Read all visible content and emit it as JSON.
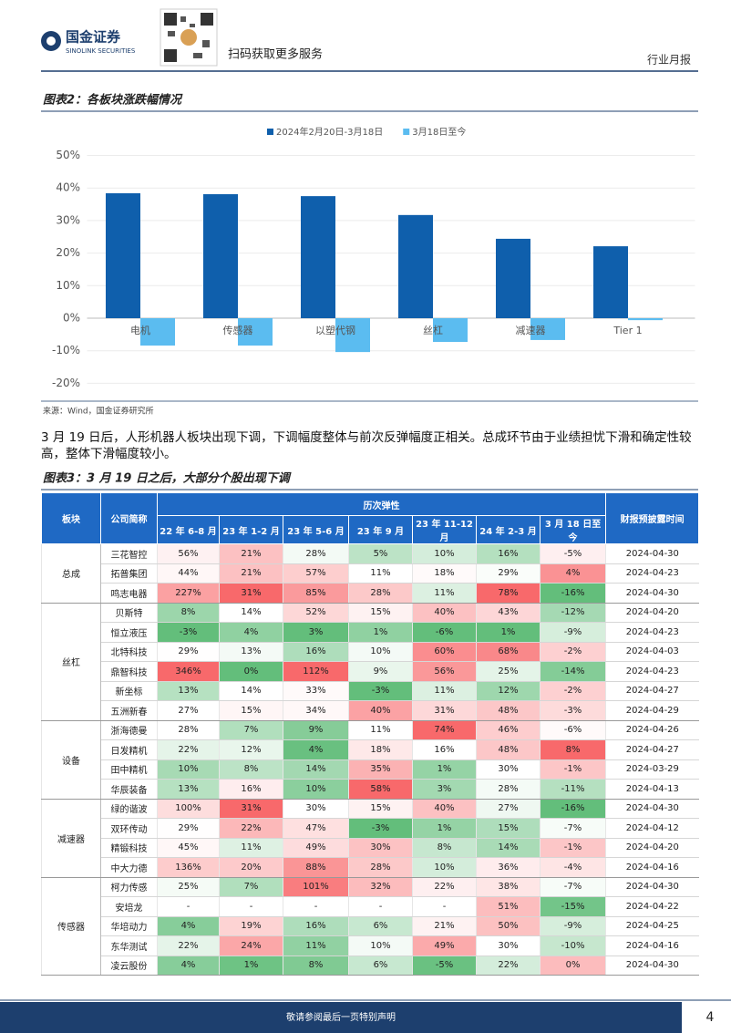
{
  "header": {
    "logo_cn": "国金证券",
    "logo_en": "SINOLINK SECURITIES",
    "qr_caption": "扫码获取更多服务",
    "report_type": "行业月报"
  },
  "figure2": {
    "title": "图表2：各板块涨跌幅情况",
    "source": "来源：Wind，国金证券研究所"
  },
  "chart_data": {
    "type": "bar",
    "categories": [
      "电机",
      "传感器",
      "以塑代钢",
      "丝杠",
      "减速器",
      "Tier 1"
    ],
    "series": [
      {
        "name": "2024年2月20日-3月18日",
        "color": "#0f5fac",
        "values": [
          38.4,
          38.1,
          37.5,
          31.7,
          24.4,
          22.1
        ]
      },
      {
        "name": "3月18日至今",
        "color": "#5bbcf0",
        "values": [
          -8.4,
          -8.4,
          -10.4,
          -7.3,
          -6.7,
          -0.6
        ]
      }
    ],
    "ylim": [
      -20,
      50
    ],
    "yticks": [
      {
        "value": -20,
        "label": "-20%"
      },
      {
        "value": -10,
        "label": "-10%"
      },
      {
        "value": 0,
        "label": "0%"
      },
      {
        "value": 10,
        "label": "10%"
      },
      {
        "value": 20,
        "label": "20%"
      },
      {
        "value": 30,
        "label": "30%"
      },
      {
        "value": 40,
        "label": "40%"
      },
      {
        "value": 50,
        "label": "50%"
      }
    ],
    "grid": true,
    "legend": "top"
  },
  "paragraph": "3 月 19 日后，人形机器人板块出现下调，下调幅度整体与前次反弹幅度正相关。总成环节由于业绩担忧下滑和确定性较高，整体下滑幅度较小。",
  "figure3": {
    "title": "图表3：3 月 19 日之后，大部分个股出现下调"
  },
  "table": {
    "columns": [
      "板块",
      "公司简称",
      "历次弹性",
      "财报预披露时间"
    ],
    "sub_columns": [
      "22 年 6-8 月",
      "23 年 1-2 月",
      "23 年 5-6 月",
      "23 年 9 月",
      "23 年 11-12 月",
      "24 年 2-3 月",
      "3 月 18 日至今"
    ],
    "heat_colors": {
      "min": "#63be7b",
      "mid": "#ffffff",
      "max": "#f8696b"
    },
    "groups": [
      {
        "name": "总成",
        "rows": [
          [
            "三花智控",
            "56%",
            "21%",
            "28%",
            "5%",
            "10%",
            "16%",
            "-5%",
            "2024-04-30"
          ],
          [
            "拓普集团",
            "44%",
            "21%",
            "57%",
            "11%",
            "18%",
            "29%",
            "4%",
            "2024-04-23"
          ],
          [
            "鸣志电器",
            "227%",
            "31%",
            "85%",
            "28%",
            "11%",
            "78%",
            "-16%",
            "2024-04-30"
          ]
        ]
      },
      {
        "name": "丝杠",
        "rows": [
          [
            "贝斯特",
            "8%",
            "14%",
            "52%",
            "15%",
            "40%",
            "43%",
            "-12%",
            "2024-04-20"
          ],
          [
            "恒立液压",
            "-3%",
            "4%",
            "3%",
            "1%",
            "-6%",
            "1%",
            "-9%",
            "2024-04-23"
          ],
          [
            "北特科技",
            "29%",
            "13%",
            "16%",
            "10%",
            "60%",
            "68%",
            "-2%",
            "2024-04-03"
          ],
          [
            "鼎智科技",
            "346%",
            "0%",
            "112%",
            "9%",
            "56%",
            "25%",
            "-14%",
            "2024-04-23"
          ],
          [
            "新坐标",
            "13%",
            "14%",
            "33%",
            "-3%",
            "11%",
            "12%",
            "-2%",
            "2024-04-27"
          ],
          [
            "五洲新春",
            "27%",
            "15%",
            "34%",
            "40%",
            "31%",
            "48%",
            "-3%",
            "2024-04-29"
          ]
        ]
      },
      {
        "name": "设备",
        "rows": [
          [
            "浙海德曼",
            "28%",
            "7%",
            "9%",
            "11%",
            "74%",
            "46%",
            "-6%",
            "2024-04-26"
          ],
          [
            "日发精机",
            "22%",
            "12%",
            "4%",
            "18%",
            "16%",
            "48%",
            "8%",
            "2024-04-27"
          ],
          [
            "田中精机",
            "10%",
            "8%",
            "14%",
            "35%",
            "1%",
            "30%",
            "-1%",
            "2024-03-29"
          ],
          [
            "华辰装备",
            "13%",
            "16%",
            "10%",
            "58%",
            "3%",
            "28%",
            "-11%",
            "2024-04-13"
          ]
        ]
      },
      {
        "name": "减速器",
        "rows": [
          [
            "绿的谐波",
            "100%",
            "31%",
            "30%",
            "15%",
            "40%",
            "27%",
            "-16%",
            "2024-04-30"
          ],
          [
            "双环传动",
            "29%",
            "22%",
            "47%",
            "-3%",
            "1%",
            "15%",
            "-7%",
            "2024-04-12"
          ],
          [
            "精锻科技",
            "45%",
            "11%",
            "49%",
            "30%",
            "8%",
            "14%",
            "-1%",
            "2024-04-20"
          ],
          [
            "中大力德",
            "136%",
            "20%",
            "88%",
            "28%",
            "10%",
            "36%",
            "-4%",
            "2024-04-16"
          ]
        ]
      },
      {
        "name": "传感器",
        "rows": [
          [
            "柯力传感",
            "25%",
            "7%",
            "101%",
            "32%",
            "22%",
            "38%",
            "-7%",
            "2024-04-30"
          ],
          [
            "安培龙",
            "-",
            "-",
            "-",
            "-",
            "-",
            "51%",
            "-15%",
            "2024-04-22"
          ],
          [
            "华培动力",
            "4%",
            "19%",
            "16%",
            "6%",
            "21%",
            "50%",
            "-9%",
            "2024-04-25"
          ],
          [
            "东华测试",
            "22%",
            "24%",
            "11%",
            "10%",
            "49%",
            "30%",
            "-10%",
            "2024-04-16"
          ],
          [
            "凌云股份",
            "4%",
            "1%",
            "8%",
            "6%",
            "-5%",
            "22%",
            "0%",
            "2024-04-30"
          ]
        ]
      }
    ]
  },
  "footer": {
    "disclaimer": "敬请参阅最后一页特别声明",
    "page": "4"
  }
}
